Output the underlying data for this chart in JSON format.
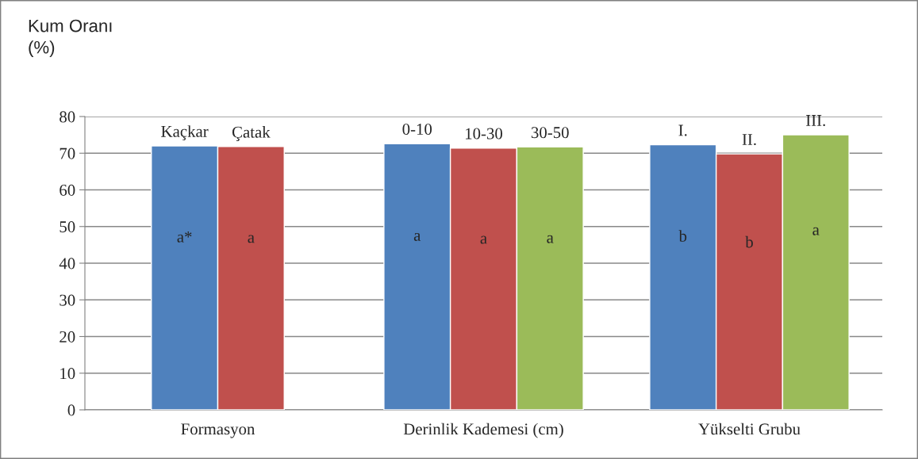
{
  "chart_data": {
    "type": "bar",
    "ylabel": "Kum Oranı\n(%)",
    "categories": [
      "Formasyon",
      "Derinlik Kademesi (cm)",
      "Yükselti Grubu"
    ],
    "series": [
      {
        "color": "#4f81bd",
        "values": [
          72.0,
          72.6,
          72.3
        ],
        "value_labels": [
          "Kaçkar",
          "0-10",
          "I."
        ]
      },
      {
        "color": "#c0504d",
        "values": [
          71.8,
          71.4,
          69.8
        ],
        "value_labels": [
          "Çatak",
          "10-30",
          "II."
        ]
      },
      {
        "color": "#9bbb59",
        "values": [
          null,
          71.7,
          75.0
        ],
        "value_labels": [
          null,
          "30-50",
          "III."
        ]
      }
    ],
    "annotations": [
      "a*",
      "a",
      "a",
      "a",
      "a",
      "b",
      "b",
      "a"
    ],
    "ylim": [
      0,
      80
    ],
    "yticks": [
      0,
      10,
      20,
      30,
      40,
      50,
      60,
      70,
      80
    ],
    "grid": "y",
    "legend": false
  }
}
